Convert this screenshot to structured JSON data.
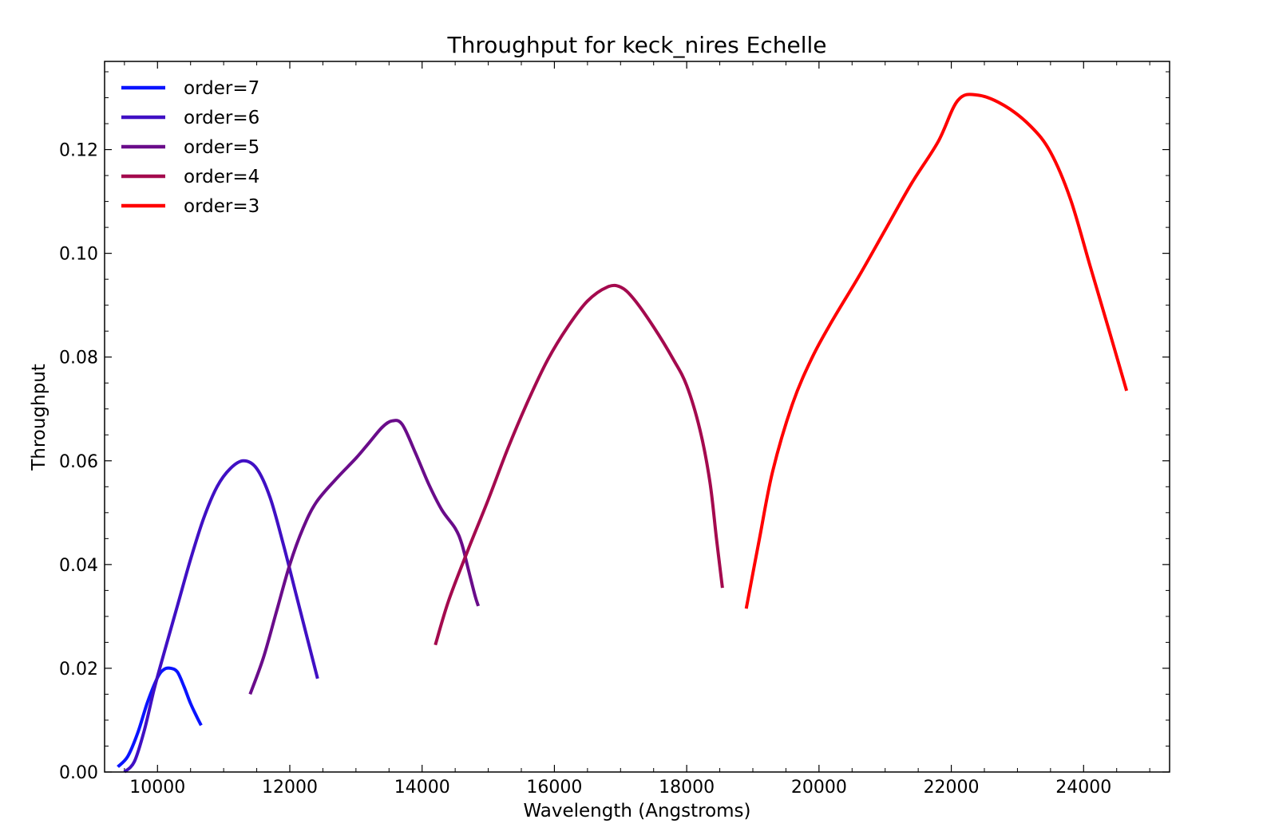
{
  "chart_data": {
    "type": "line",
    "title": "Throughput for keck_nires Echelle",
    "xlabel": "Wavelength (Angstroms)",
    "ylabel": "Throughput",
    "xlim": [
      9200,
      25300
    ],
    "ylim": [
      0.0,
      0.137
    ],
    "xticks": [
      10000,
      12000,
      14000,
      16000,
      18000,
      20000,
      22000,
      24000
    ],
    "xtick_labels": [
      "10000",
      "12000",
      "14000",
      "16000",
      "18000",
      "20000",
      "22000",
      "24000"
    ],
    "yticks": [
      0.0,
      0.02,
      0.04,
      0.06,
      0.08,
      0.1,
      0.12
    ],
    "ytick_labels": [
      "0.00",
      "0.02",
      "0.04",
      "0.06",
      "0.08",
      "0.10",
      "0.12"
    ],
    "grid": false,
    "legend_position": "top-left",
    "series": [
      {
        "name": "order=7",
        "color": "#0a14ff",
        "points": [
          [
            9400,
            0.001
          ],
          [
            9550,
            0.003
          ],
          [
            9700,
            0.0075
          ],
          [
            9850,
            0.0135
          ],
          [
            10000,
            0.0182
          ],
          [
            10100,
            0.0198
          ],
          [
            10200,
            0.02
          ],
          [
            10300,
            0.0193
          ],
          [
            10400,
            0.0165
          ],
          [
            10500,
            0.0132
          ],
          [
            10600,
            0.0105
          ],
          [
            10660,
            0.009
          ]
        ]
      },
      {
        "name": "order=6",
        "color": "#4010c4",
        "points": [
          [
            9500,
            0.0
          ],
          [
            9650,
            0.002
          ],
          [
            9800,
            0.008
          ],
          [
            9950,
            0.016
          ],
          [
            10100,
            0.023
          ],
          [
            10300,
            0.032
          ],
          [
            10500,
            0.041
          ],
          [
            10700,
            0.049
          ],
          [
            10900,
            0.055
          ],
          [
            11100,
            0.0585
          ],
          [
            11300,
            0.06
          ],
          [
            11500,
            0.0585
          ],
          [
            11700,
            0.053
          ],
          [
            11900,
            0.044
          ],
          [
            12100,
            0.034
          ],
          [
            12300,
            0.024
          ],
          [
            12420,
            0.018
          ]
        ]
      },
      {
        "name": "order=5",
        "color": "#6a0c8a",
        "points": [
          [
            11400,
            0.015
          ],
          [
            11600,
            0.022
          ],
          [
            11800,
            0.031
          ],
          [
            12000,
            0.04
          ],
          [
            12200,
            0.047
          ],
          [
            12400,
            0.052
          ],
          [
            12700,
            0.0565
          ],
          [
            13000,
            0.0605
          ],
          [
            13200,
            0.0635
          ],
          [
            13400,
            0.0665
          ],
          [
            13550,
            0.0677
          ],
          [
            13700,
            0.067
          ],
          [
            13900,
            0.0615
          ],
          [
            14100,
            0.0555
          ],
          [
            14300,
            0.0505
          ],
          [
            14500,
            0.047
          ],
          [
            14600,
            0.044
          ],
          [
            14700,
            0.039
          ],
          [
            14800,
            0.034
          ],
          [
            14850,
            0.032
          ]
        ]
      },
      {
        "name": "order=4",
        "color": "#a40a4e",
        "points": [
          [
            14200,
            0.0245
          ],
          [
            14400,
            0.033
          ],
          [
            14700,
            0.043
          ],
          [
            15000,
            0.0525
          ],
          [
            15300,
            0.0625
          ],
          [
            15600,
            0.0715
          ],
          [
            15900,
            0.0795
          ],
          [
            16200,
            0.0858
          ],
          [
            16500,
            0.0908
          ],
          [
            16800,
            0.0935
          ],
          [
            17000,
            0.0935
          ],
          [
            17200,
            0.0912
          ],
          [
            17500,
            0.0858
          ],
          [
            17800,
            0.0795
          ],
          [
            18000,
            0.0745
          ],
          [
            18200,
            0.066
          ],
          [
            18350,
            0.056
          ],
          [
            18450,
            0.045
          ],
          [
            18540,
            0.0355
          ]
        ]
      },
      {
        "name": "order=3",
        "color": "#ff0000",
        "points": [
          [
            18900,
            0.0315
          ],
          [
            19100,
            0.045
          ],
          [
            19300,
            0.058
          ],
          [
            19600,
            0.071
          ],
          [
            19900,
            0.08
          ],
          [
            20200,
            0.087
          ],
          [
            20600,
            0.0955
          ],
          [
            21000,
            0.1045
          ],
          [
            21400,
            0.1135
          ],
          [
            21800,
            0.1215
          ],
          [
            22100,
            0.1295
          ],
          [
            22400,
            0.1305
          ],
          [
            22800,
            0.1285
          ],
          [
            23200,
            0.1245
          ],
          [
            23500,
            0.1195
          ],
          [
            23800,
            0.1105
          ],
          [
            24100,
            0.0975
          ],
          [
            24400,
            0.0845
          ],
          [
            24650,
            0.0735
          ]
        ]
      }
    ]
  }
}
